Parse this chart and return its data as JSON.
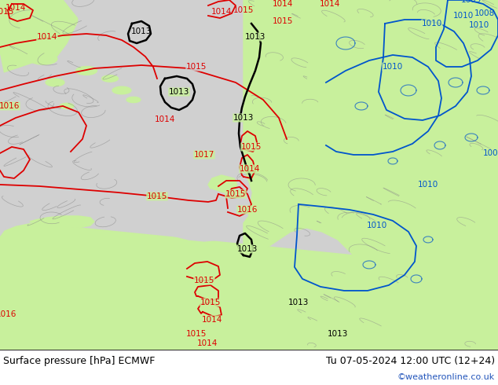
{
  "title_left": "Surface pressure [hPa] ECMWF",
  "title_right": "Tu 07-05-2024 12:00 UTC (12+24)",
  "credit": "©weatheronline.co.uk",
  "sea_color": "#d0d0d0",
  "land_color": "#c8f09c",
  "footer_bg": "#ffffff",
  "red_color": "#dd0000",
  "black_color": "#000000",
  "blue_color": "#0055cc",
  "gray_color": "#888888",
  "fig_width": 6.34,
  "fig_height": 4.9,
  "dpi": 100
}
